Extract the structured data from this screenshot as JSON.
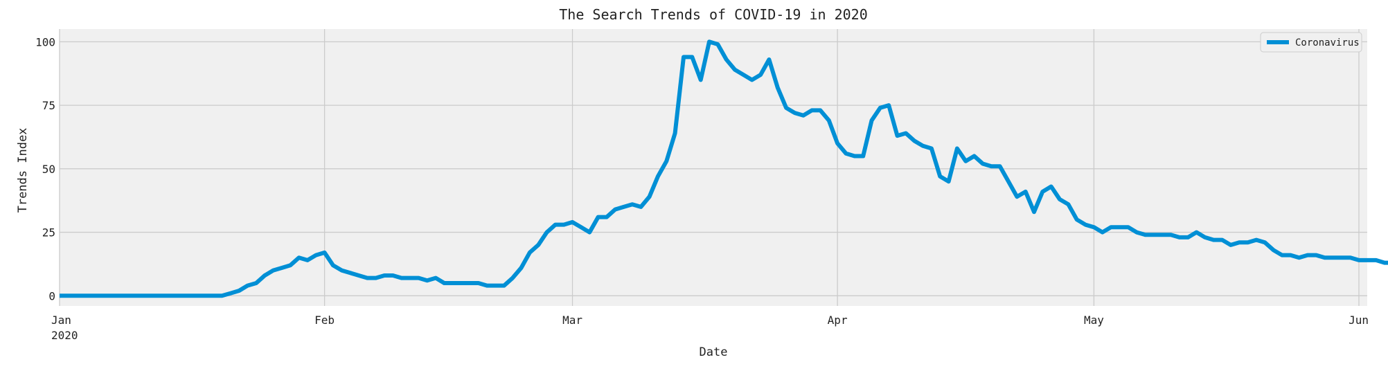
{
  "chart_data": {
    "type": "line",
    "title": "The Search Trends of COVID-19 in 2020",
    "xlabel": "Date",
    "ylabel": "Trends Index",
    "x_start": "2020-01-01",
    "x_end": "2020-06-01",
    "ylim": [
      -4,
      105
    ],
    "grid": true,
    "legend_position": "top-right",
    "x_ticks": [
      {
        "label": "Jan",
        "sub": "2020",
        "date": "2020-01-01"
      },
      {
        "label": "Feb",
        "sub": "",
        "date": "2020-02-01"
      },
      {
        "label": "Mar",
        "sub": "",
        "date": "2020-03-01"
      },
      {
        "label": "Apr",
        "sub": "",
        "date": "2020-04-01"
      },
      {
        "label": "May",
        "sub": "",
        "date": "2020-05-01"
      },
      {
        "label": "Jun",
        "sub": "",
        "date": "2020-06-01"
      }
    ],
    "y_ticks": [
      0,
      25,
      50,
      75,
      100
    ],
    "series": [
      {
        "name": "Coronavirus",
        "color": "#008fd5",
        "points": [
          [
            "2020-01-01",
            0
          ],
          [
            "2020-01-05",
            0
          ],
          [
            "2020-01-10",
            0
          ],
          [
            "2020-01-15",
            0
          ],
          [
            "2020-01-19",
            0
          ],
          [
            "2020-01-20",
            0
          ],
          [
            "2020-01-21",
            1
          ],
          [
            "2020-01-22",
            2
          ],
          [
            "2020-01-23",
            4
          ],
          [
            "2020-01-24",
            5
          ],
          [
            "2020-01-25",
            8
          ],
          [
            "2020-01-26",
            10
          ],
          [
            "2020-01-27",
            11
          ],
          [
            "2020-01-28",
            12
          ],
          [
            "2020-01-29",
            15
          ],
          [
            "2020-01-30",
            14
          ],
          [
            "2020-01-31",
            16
          ],
          [
            "2020-02-01",
            17
          ],
          [
            "2020-02-02",
            12
          ],
          [
            "2020-02-03",
            10
          ],
          [
            "2020-02-04",
            9
          ],
          [
            "2020-02-05",
            8
          ],
          [
            "2020-02-06",
            7
          ],
          [
            "2020-02-07",
            7
          ],
          [
            "2020-02-08",
            8
          ],
          [
            "2020-02-09",
            8
          ],
          [
            "2020-02-10",
            7
          ],
          [
            "2020-02-11",
            7
          ],
          [
            "2020-02-12",
            7
          ],
          [
            "2020-02-13",
            6
          ],
          [
            "2020-02-14",
            7
          ],
          [
            "2020-02-15",
            5
          ],
          [
            "2020-02-16",
            5
          ],
          [
            "2020-02-17",
            5
          ],
          [
            "2020-02-18",
            5
          ],
          [
            "2020-02-19",
            5
          ],
          [
            "2020-02-20",
            4
          ],
          [
            "2020-02-21",
            4
          ],
          [
            "2020-02-22",
            4
          ],
          [
            "2020-02-23",
            7
          ],
          [
            "2020-02-24",
            11
          ],
          [
            "2020-02-25",
            17
          ],
          [
            "2020-02-26",
            20
          ],
          [
            "2020-02-27",
            25
          ],
          [
            "2020-02-28",
            28
          ],
          [
            "2020-02-29",
            28
          ],
          [
            "2020-03-01",
            29
          ],
          [
            "2020-03-02",
            27
          ],
          [
            "2020-03-03",
            25
          ],
          [
            "2020-03-04",
            31
          ],
          [
            "2020-03-05",
            31
          ],
          [
            "2020-03-06",
            34
          ],
          [
            "2020-03-07",
            35
          ],
          [
            "2020-03-08",
            36
          ],
          [
            "2020-03-09",
            35
          ],
          [
            "2020-03-10",
            39
          ],
          [
            "2020-03-11",
            47
          ],
          [
            "2020-03-12",
            53
          ],
          [
            "2020-03-13",
            64
          ],
          [
            "2020-03-14",
            94
          ],
          [
            "2020-03-15",
            94
          ],
          [
            "2020-03-16",
            85
          ],
          [
            "2020-03-17",
            100
          ],
          [
            "2020-03-18",
            99
          ],
          [
            "2020-03-19",
            93
          ],
          [
            "2020-03-20",
            89
          ],
          [
            "2020-03-21",
            87
          ],
          [
            "2020-03-22",
            85
          ],
          [
            "2020-03-23",
            87
          ],
          [
            "2020-03-24",
            93
          ],
          [
            "2020-03-25",
            82
          ],
          [
            "2020-03-26",
            74
          ],
          [
            "2020-03-27",
            72
          ],
          [
            "2020-03-28",
            71
          ],
          [
            "2020-03-29",
            73
          ],
          [
            "2020-03-30",
            73
          ],
          [
            "2020-03-31",
            69
          ],
          [
            "2020-04-01",
            60
          ],
          [
            "2020-04-02",
            56
          ],
          [
            "2020-04-03",
            55
          ],
          [
            "2020-04-04",
            55
          ],
          [
            "2020-04-05",
            69
          ],
          [
            "2020-04-06",
            74
          ],
          [
            "2020-04-07",
            75
          ],
          [
            "2020-04-08",
            63
          ],
          [
            "2020-04-09",
            64
          ],
          [
            "2020-04-10",
            61
          ],
          [
            "2020-04-11",
            59
          ],
          [
            "2020-04-12",
            58
          ],
          [
            "2020-04-13",
            47
          ],
          [
            "2020-04-14",
            45
          ],
          [
            "2020-04-15",
            58
          ],
          [
            "2020-04-16",
            53
          ],
          [
            "2020-04-17",
            55
          ],
          [
            "2020-04-18",
            52
          ],
          [
            "2020-04-19",
            51
          ],
          [
            "2020-04-20",
            51
          ],
          [
            "2020-04-21",
            45
          ],
          [
            "2020-04-22",
            39
          ],
          [
            "2020-04-23",
            41
          ],
          [
            "2020-04-24",
            33
          ],
          [
            "2020-04-25",
            41
          ],
          [
            "2020-04-26",
            43
          ],
          [
            "2020-04-27",
            38
          ],
          [
            "2020-04-28",
            36
          ],
          [
            "2020-04-29",
            30
          ],
          [
            "2020-04-30",
            28
          ],
          [
            "2020-05-01",
            27
          ],
          [
            "2020-05-02",
            25
          ],
          [
            "2020-05-03",
            27
          ],
          [
            "2020-05-04",
            27
          ],
          [
            "2020-05-05",
            27
          ],
          [
            "2020-05-06",
            25
          ],
          [
            "2020-05-07",
            24
          ],
          [
            "2020-05-08",
            24
          ],
          [
            "2020-05-09",
            24
          ],
          [
            "2020-05-10",
            24
          ],
          [
            "2020-05-11",
            23
          ],
          [
            "2020-05-12",
            23
          ],
          [
            "2020-05-13",
            25
          ],
          [
            "2020-05-14",
            23
          ],
          [
            "2020-05-15",
            22
          ],
          [
            "2020-05-16",
            22
          ],
          [
            "2020-05-17",
            20
          ],
          [
            "2020-05-18",
            21
          ],
          [
            "2020-05-19",
            21
          ],
          [
            "2020-05-20",
            22
          ],
          [
            "2020-05-21",
            21
          ],
          [
            "2020-05-22",
            18
          ],
          [
            "2020-05-23",
            16
          ],
          [
            "2020-05-24",
            16
          ],
          [
            "2020-05-25",
            15
          ],
          [
            "2020-05-26",
            16
          ],
          [
            "2020-05-27",
            16
          ],
          [
            "2020-05-28",
            15
          ],
          [
            "2020-05-29",
            15
          ],
          [
            "2020-05-30",
            15
          ],
          [
            "2020-05-31",
            15
          ],
          [
            "2020-06-01",
            14
          ],
          [
            "2020-06-02",
            14
          ],
          [
            "2020-06-03",
            14
          ],
          [
            "2020-06-04",
            13
          ],
          [
            "2020-06-05",
            13
          ]
        ]
      }
    ]
  }
}
